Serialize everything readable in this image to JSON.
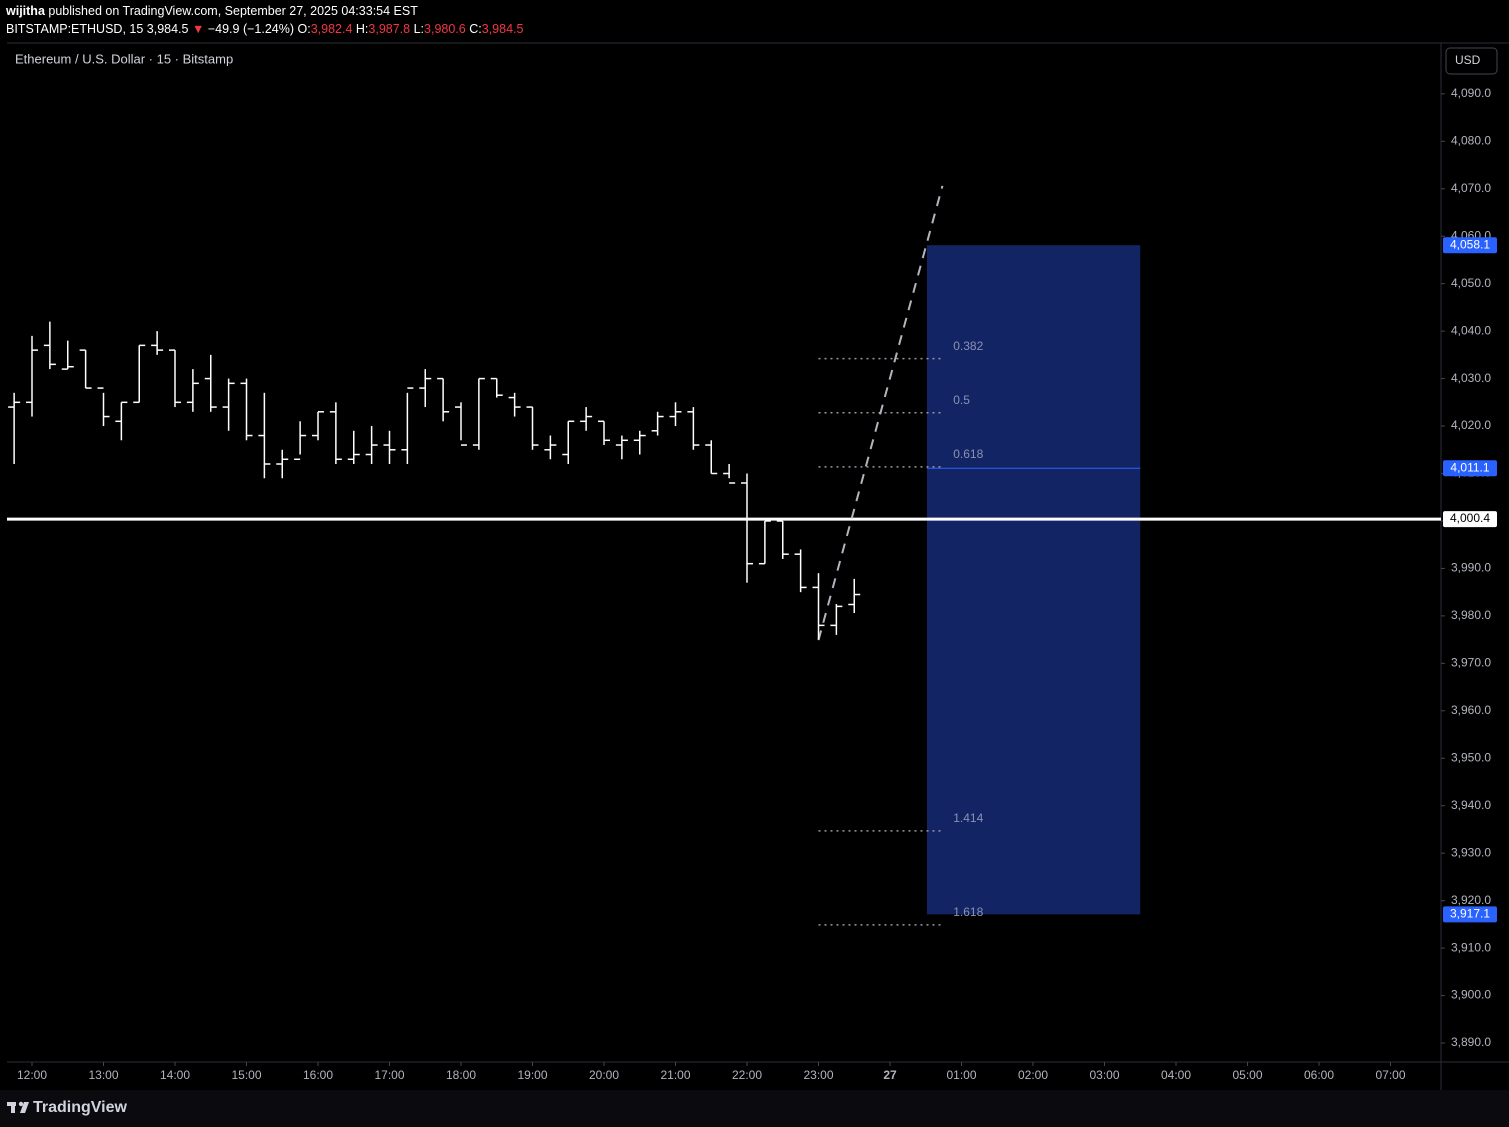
{
  "header": {
    "author": "wijitha",
    "published": "published on TradingView.com, September 27, 2025 04:33:54 EST",
    "symbol": "BITSTAMP:ETHUSD, 15",
    "last": "3,984.5",
    "arrow": "▼",
    "change": "−49.9 (−1.24%)",
    "ohlc": [
      {
        "label": "O:",
        "value": "3,982.4"
      },
      {
        "label": "H:",
        "value": "3,987.8"
      },
      {
        "label": "L:",
        "value": "3,980.6"
      },
      {
        "label": "C:",
        "value": "3,984.5"
      }
    ]
  },
  "currency": "USD",
  "footer": {
    "brand": "TradingView"
  },
  "chart_data": {
    "type": "ohlc",
    "title": "Ethereum / U.S. Dollar · 15 · Bitstamp",
    "color": "#ffffff",
    "grid": false,
    "x": [
      "11:45",
      "12:00",
      "12:15",
      "12:30",
      "12:45",
      "13:00",
      "13:15",
      "13:30",
      "13:45",
      "14:00",
      "14:15",
      "14:30",
      "14:45",
      "15:00",
      "15:15",
      "15:30",
      "15:45",
      "16:00",
      "16:15",
      "16:30",
      "16:45",
      "17:00",
      "17:15",
      "17:30",
      "17:45",
      "18:00",
      "18:15",
      "18:30",
      "18:45",
      "19:00",
      "19:15",
      "19:30",
      "19:45",
      "20:00",
      "20:15",
      "20:30",
      "20:45",
      "21:00",
      "21:15",
      "21:30",
      "21:45",
      "22:00",
      "22:15",
      "22:30",
      "22:45",
      "23:00",
      "23:15",
      "23:30"
    ],
    "open": [
      4024,
      4025,
      4037,
      4032,
      4036,
      4028,
      4021,
      4025,
      4037,
      4036,
      4025,
      4030,
      4024,
      4029,
      4018,
      4012,
      4013,
      4018,
      4023,
      4013,
      4014,
      4016,
      4015,
      4028,
      4030,
      4024,
      4016,
      4030,
      4026,
      4024,
      4015,
      4014,
      4021,
      4021,
      4016,
      4017,
      4019,
      4022,
      4023,
      4016,
      4010,
      4008,
      3991,
      4000,
      3993,
      3986,
      3978,
      3982.4
    ],
    "high": [
      4027,
      4039,
      4042,
      4038,
      4036,
      4027,
      4025,
      4037,
      4040,
      4036,
      4032,
      4035,
      4030,
      4030,
      4027,
      4015,
      4021,
      4023,
      4025,
      4019,
      4020,
      4019,
      4027,
      4032,
      4030,
      4025,
      4030,
      4030,
      4027,
      4024,
      4018,
      4021,
      4024,
      4021,
      4018,
      4019,
      4023,
      4025,
      4024,
      4017,
      4012,
      4010,
      4000,
      4000,
      3994,
      3989,
      3982.5,
      3987.8
    ],
    "low": [
      4012,
      4022,
      4032,
      4032,
      4028,
      4020,
      4017,
      4025,
      4035,
      4024,
      4023,
      4023,
      4019,
      4017,
      4009,
      4009,
      4014,
      4017,
      4012,
      4012,
      4012,
      4012,
      4012,
      4024,
      4021,
      4017,
      4015,
      4026,
      4022,
      4015,
      4013,
      4012,
      4019,
      4016,
      4013,
      4014,
      4018,
      4020,
      4015,
      4010,
      4009,
      3987,
      3991,
      3992,
      3985,
      3975,
      3976,
      3980.6
    ],
    "close": [
      4025,
      4036,
      4033,
      4032.5,
      4028,
      4022,
      4025,
      4037,
      4036,
      4025,
      4029,
      4024,
      4029,
      4018,
      4012,
      4013,
      4018,
      4023,
      4013,
      4014,
      4016,
      4015,
      4028,
      4030,
      4023,
      4016,
      4030,
      4026.5,
      4024,
      4016,
      4016,
      4021,
      4022,
      4017,
      4017,
      4018,
      4022,
      4023,
      4016,
      4010,
      4008,
      3991,
      4000,
      3993,
      3986,
      3978,
      3982,
      3984.5
    ],
    "xticks": [
      "12:00",
      "13:00",
      "14:00",
      "15:00",
      "16:00",
      "17:00",
      "18:00",
      "19:00",
      "20:00",
      "21:00",
      "22:00",
      "23:00",
      "27",
      "01:00",
      "02:00",
      "03:00",
      "04:00",
      "05:00",
      "06:00",
      "07:00"
    ],
    "ylim": [
      3886,
      4100.5
    ],
    "yticks": [
      {
        "value": 3890,
        "label": "3,890.0"
      },
      {
        "value": 3900,
        "label": "3,900.0"
      },
      {
        "value": 3910,
        "label": "3,910.0"
      },
      {
        "value": 3920,
        "label": "3,920.0"
      },
      {
        "value": 3930,
        "label": "3,930.0"
      },
      {
        "value": 3940,
        "label": "3,940.0"
      },
      {
        "value": 3950,
        "label": "3,950.0"
      },
      {
        "value": 3960,
        "label": "3,960.0"
      },
      {
        "value": 3970,
        "label": "3,970.0"
      },
      {
        "value": 3980,
        "label": "3,980.0"
      },
      {
        "value": 3990,
        "label": "3,990.0"
      },
      {
        "value": 4000,
        "label": "4,000.0"
      },
      {
        "value": 4010,
        "label": "4,010.0"
      },
      {
        "value": 4020,
        "label": "4,020.0"
      },
      {
        "value": 4030,
        "label": "4,030.0"
      },
      {
        "value": 4040,
        "label": "4,040.0"
      },
      {
        "value": 4050,
        "label": "4,050.0"
      },
      {
        "value": 4060,
        "label": "4,060.0"
      },
      {
        "value": 4070,
        "label": "4,070.0"
      },
      {
        "value": 4080,
        "label": "4,080.0"
      },
      {
        "value": 4090,
        "label": "4,090.0"
      }
    ],
    "horizontal_line": {
      "value": 4000.4,
      "label": "4,000.4",
      "color": "#ffffff"
    },
    "position_box": {
      "x": [
        "00:31",
        "03:30"
      ],
      "color": "#2962ff",
      "fill": "#132464",
      "levels": [
        {
          "value": 4058.1,
          "label": "4,058.1"
        },
        {
          "value": 4011.1,
          "label": "4,011.1"
        },
        {
          "value": 3917.1,
          "label": "3,917.1"
        }
      ]
    },
    "fib_levels": {
      "x": [
        "23:00",
        "00:43"
      ],
      "color": "#9598a1",
      "levels": [
        {
          "ratio": 0.382,
          "price": 4034.2
        },
        {
          "ratio": 0.5,
          "price": 4022.8
        },
        {
          "ratio": 0.618,
          "price": 4011.4
        },
        {
          "ratio": 1.414,
          "price": 3934.7
        },
        {
          "ratio": 1.618,
          "price": 3914.9
        }
      ]
    },
    "trend_line": {
      "x": [
        "23:00",
        "00:44"
      ],
      "y": [
        3974.9,
        4070.6
      ],
      "color": "#b2b5be"
    }
  }
}
